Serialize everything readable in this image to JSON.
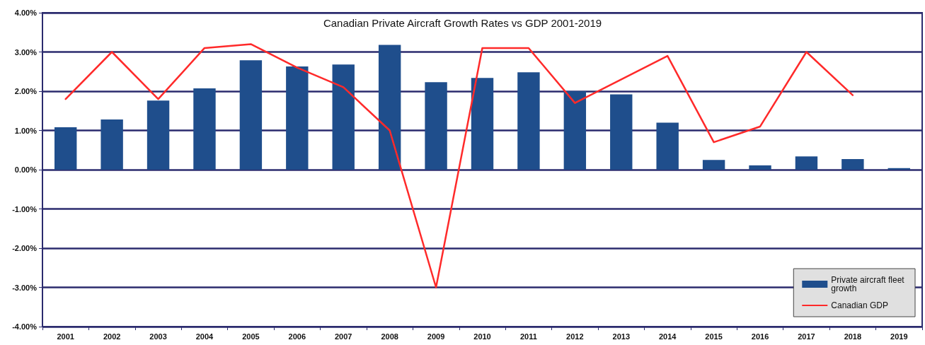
{
  "chart_data": {
    "type": "bar",
    "title": "Canadian Private Aircraft Growth Rates vs GDP 2001-2019",
    "categories": [
      "2001",
      "2002",
      "2003",
      "2004",
      "2005",
      "2006",
      "2007",
      "2008",
      "2009",
      "2010",
      "2011",
      "2012",
      "2013",
      "2014",
      "2015",
      "2016",
      "2017",
      "2018",
      "2019"
    ],
    "series": [
      {
        "name": "Private aircraft fleet growth",
        "color": "#1f4e8c",
        "values": [
          1.08,
          1.28,
          1.76,
          2.07,
          2.79,
          2.63,
          2.68,
          3.18,
          2.23,
          2.34,
          2.48,
          2.0,
          1.92,
          1.2,
          0.25,
          0.11,
          0.34,
          0.27,
          0.04
        ]
      },
      {
        "name": "Canadian GDP",
        "type": "line",
        "color": "#ff2a2a",
        "values": [
          1.8,
          3.0,
          1.8,
          3.1,
          3.2,
          2.6,
          2.1,
          1.0,
          -3.0,
          3.1,
          3.1,
          1.7,
          2.3,
          2.9,
          0.7,
          1.1,
          3.0,
          1.9,
          null
        ]
      }
    ],
    "ylim": [
      -4,
      4
    ],
    "yticks": [
      {
        "value": -4,
        "label": "-4.00%"
      },
      {
        "value": -3,
        "label": "-3.00%"
      },
      {
        "value": -2,
        "label": "-2.00%"
      },
      {
        "value": -1,
        "label": "-1.00%"
      },
      {
        "value": 0,
        "label": "0.00%"
      },
      {
        "value": 1,
        "label": "1.00%"
      },
      {
        "value": 2,
        "label": "2.00%"
      },
      {
        "value": 3,
        "label": "3.00%"
      },
      {
        "value": 4,
        "label": "4.00%"
      }
    ],
    "grid": "y",
    "legend": "bottom right",
    "marker": "none",
    "line_style": "solid"
  }
}
